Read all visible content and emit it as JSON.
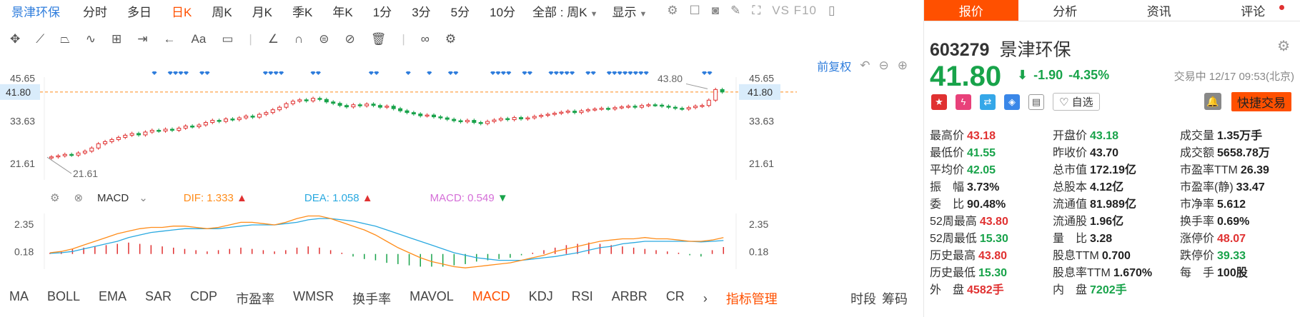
{
  "toolbar": {
    "stock_name": "景津环保",
    "periods": [
      "分时",
      "多日",
      "日K",
      "周K",
      "月K",
      "季K",
      "年K",
      "1分",
      "3分",
      "5分",
      "10分"
    ],
    "active_period": "日K",
    "range_select": "全部 : 周K",
    "display_label": "显示",
    "vs_label": "VS F10"
  },
  "kline": {
    "adjust_label": "前复权",
    "axis_left": [
      "45.65",
      "41.80",
      "33.63",
      "21.61"
    ],
    "axis_right": [
      "45.65",
      "41.80",
      "33.63",
      "21.61"
    ],
    "current_price_label": "41.80",
    "high_marker": "43.80",
    "low_marker": "21.61",
    "y_range": [
      17,
      46
    ],
    "closes": [
      23.5,
      23.8,
      24.2,
      24.0,
      24.6,
      25.1,
      26.0,
      27.2,
      27.8,
      28.4,
      29.0,
      29.6,
      30.1,
      29.7,
      30.5,
      31.0,
      30.8,
      31.3,
      31.0,
      31.6,
      32.2,
      32.0,
      32.5,
      33.2,
      33.8,
      33.5,
      34.2,
      34.0,
      34.5,
      35.0,
      34.7,
      35.5,
      36.0,
      36.8,
      37.5,
      38.5,
      39.2,
      39.6,
      39.3,
      40.0,
      39.7,
      39.0,
      38.6,
      38.0,
      37.6,
      38.2,
      37.9,
      38.4,
      38.0,
      37.5,
      37.8,
      37.1,
      36.5,
      36.0,
      35.6,
      35.1,
      35.3,
      34.8,
      34.5,
      34.1,
      33.7,
      33.4,
      33.8,
      33.2,
      32.9,
      33.5,
      33.9,
      34.3,
      34.0,
      34.6,
      34.2,
      34.5,
      34.9,
      35.2,
      35.5,
      35.8,
      36.1,
      36.4,
      36.0,
      36.5,
      36.8,
      37.0,
      37.2,
      37.0,
      37.4,
      37.6,
      37.8,
      37.5,
      38.0,
      38.2,
      38.1,
      37.8,
      37.5,
      37.2,
      37.0,
      37.4,
      37.8,
      38.0,
      39.5,
      42.5,
      41.8
    ],
    "signal_marks": [
      10,
      13,
      14,
      15,
      16,
      19,
      20,
      31,
      32,
      33,
      34,
      40,
      41,
      51,
      52,
      58,
      62,
      66,
      67,
      74,
      75,
      76,
      77,
      80,
      81,
      85,
      86,
      87,
      88,
      89,
      92,
      93,
      96,
      97,
      98,
      99,
      100,
      101,
      102,
      103,
      114,
      115
    ]
  },
  "macd": {
    "name": "MACD",
    "dif_label": "DIF:",
    "dif_value": "1.333",
    "dea_label": "DEA:",
    "dea_value": "1.058",
    "macd_label": "MACD:",
    "macd_value": "0.549",
    "axis_left": [
      "2.35",
      "0.18"
    ],
    "axis_right": [
      "2.35",
      "0.18"
    ],
    "y_range": [
      -1.2,
      3.2
    ],
    "dif": [
      0.1,
      0.2,
      0.4,
      0.7,
      1.0,
      1.3,
      1.6,
      1.8,
      2.0,
      2.1,
      2.1,
      2.2,
      2.2,
      2.1,
      2.0,
      2.1,
      2.3,
      2.5,
      2.5,
      2.4,
      2.3,
      2.5,
      2.8,
      3.0,
      3.0,
      2.8,
      2.5,
      2.2,
      1.9,
      1.5,
      1.0,
      0.5,
      0.1,
      -0.3,
      -0.6,
      -0.8,
      -1.0,
      -1.1,
      -1.0,
      -0.9,
      -0.8,
      -0.7,
      -0.5,
      -0.3,
      -0.1,
      0.2,
      0.4,
      0.6,
      0.8,
      1.0,
      1.1,
      1.2,
      1.2,
      1.3,
      1.2,
      1.2,
      1.1,
      1.0,
      1.0,
      1.1,
      1.3
    ],
    "dea": [
      0.05,
      0.1,
      0.2,
      0.4,
      0.6,
      0.8,
      1.0,
      1.3,
      1.5,
      1.7,
      1.8,
      1.9,
      2.0,
      2.0,
      2.0,
      2.0,
      2.1,
      2.2,
      2.3,
      2.3,
      2.3,
      2.4,
      2.5,
      2.7,
      2.8,
      2.8,
      2.7,
      2.6,
      2.4,
      2.2,
      1.9,
      1.6,
      1.3,
      1.0,
      0.7,
      0.4,
      0.1,
      -0.1,
      -0.3,
      -0.4,
      -0.5,
      -0.5,
      -0.5,
      -0.4,
      -0.3,
      -0.2,
      -0.05,
      0.1,
      0.3,
      0.5,
      0.6,
      0.8,
      0.9,
      1.0,
      1.0,
      1.0,
      1.0,
      1.0,
      0.95,
      1.0,
      1.06
    ],
    "hist": [
      0.1,
      0.2,
      0.4,
      0.5,
      0.6,
      0.7,
      0.8,
      0.9,
      0.8,
      0.7,
      0.6,
      0.5,
      0.4,
      0.3,
      0.2,
      0.3,
      0.4,
      0.5,
      0.4,
      0.3,
      0.2,
      0.3,
      0.5,
      0.6,
      0.5,
      0.3,
      0.1,
      -0.2,
      -0.4,
      -0.5,
      -0.7,
      -0.8,
      -0.9,
      -1.0,
      -1.0,
      -1.0,
      -0.9,
      -0.8,
      -0.6,
      -0.5,
      -0.4,
      -0.3,
      -0.1,
      0.1,
      0.3,
      0.5,
      0.7,
      0.8,
      0.9,
      0.8,
      0.7,
      0.6,
      0.5,
      0.4,
      0.3,
      0.2,
      0.1,
      -0.1,
      -0.2,
      0.3,
      0.55
    ]
  },
  "indicators": {
    "items": [
      "MA",
      "BOLL",
      "EMA",
      "SAR",
      "CDP",
      "市盈率",
      "WMSR",
      "换手率",
      "MAVOL",
      "MACD",
      "KDJ",
      "RSI",
      "ARBR",
      "CR"
    ],
    "active": "MACD",
    "manage_label": "指标管理",
    "right_items": [
      "时段",
      "筹码"
    ]
  },
  "quote": {
    "tabs": [
      "报价",
      "分析",
      "资讯",
      "评论"
    ],
    "code": "603279",
    "name": "景津环保",
    "price": "41.80",
    "change": "-1.90",
    "change_pct": "-4.35%",
    "status": "交易中 12/17 09:53(北京)",
    "watch_label": "自选",
    "trade_label": "快捷交易",
    "rows": [
      [
        {
          "l": "最高价",
          "v": "43.18",
          "c": "up"
        },
        {
          "l": "开盘价",
          "v": "43.18",
          "c": "dn"
        },
        {
          "l": "成交量",
          "v": "1.35万手",
          "c": ""
        }
      ],
      [
        {
          "l": "最低价",
          "v": "41.55",
          "c": "dn"
        },
        {
          "l": "昨收价",
          "v": "43.70",
          "c": ""
        },
        {
          "l": "成交额",
          "v": "5658.78万",
          "c": ""
        }
      ],
      [
        {
          "l": "平均价",
          "v": "42.05",
          "c": "dn"
        },
        {
          "l": "总市值",
          "v": "172.19亿",
          "c": ""
        },
        {
          "l": "市盈率TTM",
          "v": "26.39",
          "c": ""
        }
      ],
      [
        {
          "l": "振　幅",
          "v": "3.73%",
          "c": ""
        },
        {
          "l": "总股本",
          "v": "4.12亿",
          "c": ""
        },
        {
          "l": "市盈率(静)",
          "v": "33.47",
          "c": ""
        }
      ],
      [
        {
          "l": "委　比",
          "v": "90.48%",
          "c": ""
        },
        {
          "l": "流通值",
          "v": "81.989亿",
          "c": ""
        },
        {
          "l": "市净率",
          "v": "5.612",
          "c": ""
        }
      ],
      [
        {
          "l": "52周最高",
          "v": "43.80",
          "c": "up"
        },
        {
          "l": "流通股",
          "v": "1.96亿",
          "c": ""
        },
        {
          "l": "换手率",
          "v": "0.69%",
          "c": ""
        }
      ],
      [
        {
          "l": "52周最低",
          "v": "15.30",
          "c": "dn"
        },
        {
          "l": "量　比",
          "v": "3.28",
          "c": ""
        },
        {
          "l": "涨停价",
          "v": "48.07",
          "c": "up"
        }
      ],
      [
        {
          "l": "历史最高",
          "v": "43.80",
          "c": "up"
        },
        {
          "l": "股息TTM",
          "v": "0.700",
          "c": ""
        },
        {
          "l": "跌停价",
          "v": "39.33",
          "c": "dn"
        }
      ],
      [
        {
          "l": "历史最低",
          "v": "15.30",
          "c": "dn"
        },
        {
          "l": "股息率TTM",
          "v": "1.670%",
          "c": ""
        },
        {
          "l": "每　手",
          "v": "100股",
          "c": ""
        }
      ],
      [
        {
          "l": "外　盘",
          "v": "4582手",
          "c": "up"
        },
        {
          "l": "内　盘",
          "v": "7202手",
          "c": "dn"
        },
        {
          "l": "",
          "v": "",
          "c": ""
        }
      ]
    ]
  },
  "colors": {
    "up": "#e03131",
    "down": "#18a34a",
    "accent": "#ff5000",
    "link": "#2f7ddc",
    "dif": "#ff8c1a",
    "dea": "#2aa9e0"
  }
}
